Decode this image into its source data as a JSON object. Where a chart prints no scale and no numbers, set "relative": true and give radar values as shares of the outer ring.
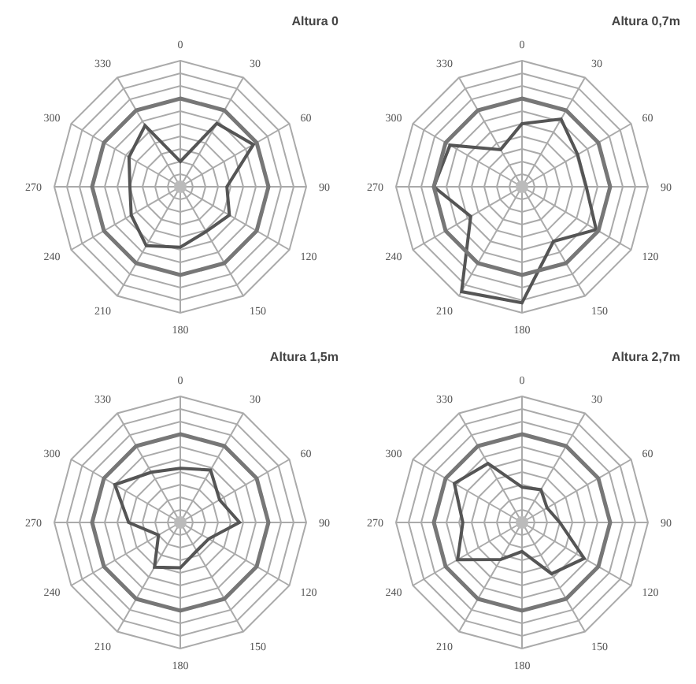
{
  "chart_data": [
    {
      "type": "radar",
      "title": "Altura 0",
      "categories": [
        "0",
        "30",
        "60",
        "90",
        "120",
        "150",
        "180",
        "210",
        "240",
        "270",
        "300",
        "330"
      ],
      "relative": true,
      "grid": true,
      "series": [
        {
          "color": "#555555",
          "values": [
            0.2,
            0.58,
            0.67,
            0.37,
            0.45,
            0.41,
            0.48,
            0.54,
            0.45,
            0.4,
            0.47,
            0.56
          ]
        }
      ]
    },
    {
      "type": "radar",
      "title": "Altura 0,7m",
      "categories": [
        "0",
        "30",
        "60",
        "90",
        "120",
        "150",
        "180",
        "210",
        "240",
        "270",
        "300",
        "330"
      ],
      "relative": true,
      "grid": true,
      "series": [
        {
          "color": "#555555",
          "values": [
            0.5,
            0.62,
            0.51,
            0.51,
            0.68,
            0.5,
            0.92,
            0.96,
            0.47,
            0.7,
            0.66,
            0.34
          ]
        }
      ]
    },
    {
      "type": "radar",
      "title": "Altura 1,5m",
      "categories": [
        "0",
        "30",
        "60",
        "90",
        "120",
        "150",
        "180",
        "210",
        "240",
        "270",
        "300",
        "330"
      ],
      "relative": true,
      "grid": true,
      "series": [
        {
          "color": "#555555",
          "values": [
            0.43,
            0.48,
            0.36,
            0.47,
            0.26,
            0.26,
            0.36,
            0.41,
            0.2,
            0.41,
            0.6,
            0.46
          ]
        }
      ]
    },
    {
      "type": "radar",
      "title": "Altura 2,7m",
      "categories": [
        "0",
        "30",
        "60",
        "90",
        "120",
        "150",
        "180",
        "210",
        "240",
        "270",
        "300",
        "330"
      ],
      "relative": true,
      "grid": true,
      "series": [
        {
          "color": "#555555",
          "values": [
            0.28,
            0.3,
            0.23,
            0.3,
            0.57,
            0.47,
            0.23,
            0.34,
            0.59,
            0.47,
            0.62,
            0.54
          ]
        }
      ]
    }
  ]
}
